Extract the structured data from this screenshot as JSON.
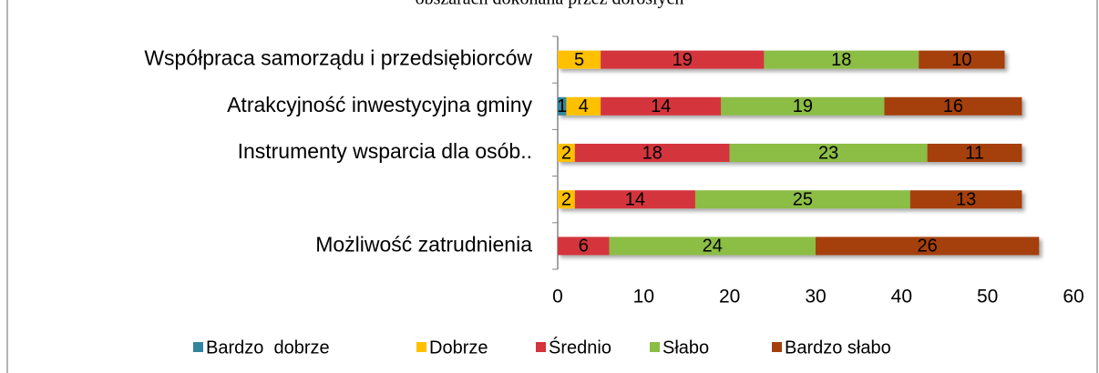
{
  "chart_data": {
    "type": "stacked-bar-horizontal",
    "title": "obszarach dokonana przez dorosłych",
    "categories": [
      "Współpraca samorządu i przedsiębiorców",
      "Atrakcyjność inwestycyjna gminy",
      "Instrumenty wsparcia dla osób..",
      null,
      "Możliwość zatrudnienia"
    ],
    "series": [
      {
        "name": "Bardzo  dobrze",
        "color": "#31859c",
        "values": [
          0,
          1,
          0,
          0,
          0
        ]
      },
      {
        "name": "Dobrze",
        "color": "#ffc000",
        "values": [
          5,
          4,
          2,
          2,
          0
        ]
      },
      {
        "name": "Średnio",
        "color": "#d4343c",
        "values": [
          19,
          14,
          18,
          14,
          6
        ]
      },
      {
        "name": "Słabo",
        "color": "#8cbd44",
        "values": [
          18,
          19,
          23,
          25,
          24
        ]
      },
      {
        "name": "Bardzo słabo",
        "color": "#a5400e",
        "values": [
          10,
          16,
          11,
          13,
          26
        ]
      }
    ],
    "xlim": [
      0,
      60
    ],
    "xticks": [
      0,
      10,
      20,
      30,
      40,
      50,
      60
    ],
    "grid": false,
    "legend": "bottom"
  }
}
